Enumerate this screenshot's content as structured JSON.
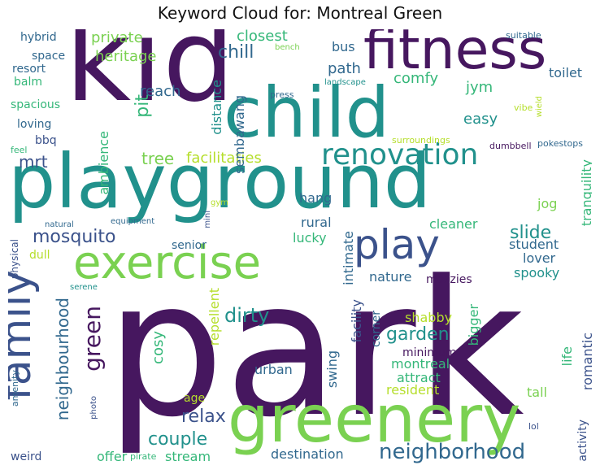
{
  "title": "Keyword Cloud for: Montreal Green",
  "palette": {
    "purple": "#46175f",
    "indigo": "#3b528b",
    "slate": "#31688e",
    "teal": "#21918c",
    "green": "#35b779",
    "lime": "#7ad151",
    "yellow": "#b5de2b"
  },
  "words": [
    {
      "text": "park",
      "color": "#46175f"
    },
    {
      "text": "kid",
      "color": "#46175f"
    },
    {
      "text": "playground",
      "color": "#21918c"
    },
    {
      "text": "child",
      "color": "#21918c"
    },
    {
      "text": "greenery",
      "color": "#7ad151"
    },
    {
      "text": "fitness",
      "color": "#46175f"
    },
    {
      "text": "exercise",
      "color": "#7ad151"
    },
    {
      "text": "family",
      "color": "#3b528b"
    },
    {
      "text": "play",
      "color": "#3b528b"
    },
    {
      "text": "renovation",
      "color": "#21918c"
    },
    {
      "text": "neighborhood",
      "color": "#31688e"
    },
    {
      "text": "green",
      "color": "#46175f"
    },
    {
      "text": "mosquito",
      "color": "#3b528b"
    },
    {
      "text": "neighbourhood",
      "color": "#31688e"
    },
    {
      "text": "dirty",
      "color": "#21918c"
    },
    {
      "text": "garden",
      "color": "#21918c"
    },
    {
      "text": "couple",
      "color": "#21918c"
    },
    {
      "text": "relax",
      "color": "#3b528b"
    },
    {
      "text": "slide",
      "color": "#21918c"
    },
    {
      "text": "chill",
      "color": "#31688e"
    },
    {
      "text": "tree",
      "color": "#7ad151"
    },
    {
      "text": "mrt",
      "color": "#3b528b"
    },
    {
      "text": "pit",
      "color": "#35b779"
    },
    {
      "text": "reach",
      "color": "#31688e"
    },
    {
      "text": "private",
      "color": "#7ad151"
    },
    {
      "text": "heritage",
      "color": "#7ad151"
    },
    {
      "text": "closest",
      "color": "#35b779"
    },
    {
      "text": "path",
      "color": "#31688e"
    },
    {
      "text": "comfy",
      "color": "#35b779"
    },
    {
      "text": "bus",
      "color": "#31688e"
    },
    {
      "text": "easy",
      "color": "#21918c"
    },
    {
      "text": "toilet",
      "color": "#31688e"
    },
    {
      "text": "jym",
      "color": "#35b779"
    },
    {
      "text": "facilitaties",
      "color": "#b5de2b"
    },
    {
      "text": "sembawang",
      "color": "#31688e"
    },
    {
      "text": "distance",
      "color": "#21918c"
    },
    {
      "text": "ambience",
      "color": "#35b779"
    },
    {
      "text": "hang",
      "color": "#31688e"
    },
    {
      "text": "jog",
      "color": "#7ad151"
    },
    {
      "text": "cleaner",
      "color": "#35b779"
    },
    {
      "text": "rural",
      "color": "#31688e"
    },
    {
      "text": "lucky",
      "color": "#35b779"
    },
    {
      "text": "senior",
      "color": "#31688e"
    },
    {
      "text": "student",
      "color": "#31688e"
    },
    {
      "text": "lover",
      "color": "#31688e"
    },
    {
      "text": "tranquility",
      "color": "#35b779"
    },
    {
      "text": "spooky",
      "color": "#21918c"
    },
    {
      "text": "nature",
      "color": "#31688e"
    },
    {
      "text": "mozzies",
      "color": "#46175f"
    },
    {
      "text": "intimate",
      "color": "#31688e"
    },
    {
      "text": "shabby",
      "color": "#b5de2b"
    },
    {
      "text": "facility",
      "color": "#3b528b"
    },
    {
      "text": "corner",
      "color": "#31688e"
    },
    {
      "text": "minimum",
      "color": "#46175f"
    },
    {
      "text": "montreal",
      "color": "#35b779"
    },
    {
      "text": "bigger",
      "color": "#35b779"
    },
    {
      "text": "attract",
      "color": "#35b779"
    },
    {
      "text": "life",
      "color": "#35b779"
    },
    {
      "text": "romantic",
      "color": "#3b528b"
    },
    {
      "text": "resident",
      "color": "#b5de2b"
    },
    {
      "text": "tall",
      "color": "#7ad151"
    },
    {
      "text": "swing",
      "color": "#31688e"
    },
    {
      "text": "urban",
      "color": "#31688e"
    },
    {
      "text": "cosy",
      "color": "#35b779"
    },
    {
      "text": "repellent",
      "color": "#b5de2b"
    },
    {
      "text": "age",
      "color": "#b5de2b"
    },
    {
      "text": "offer",
      "color": "#35b779"
    },
    {
      "text": "stream",
      "color": "#35b779"
    },
    {
      "text": "destination",
      "color": "#31688e"
    },
    {
      "text": "activity",
      "color": "#3b528b"
    },
    {
      "text": "hybrid",
      "color": "#31688e"
    },
    {
      "text": "space",
      "color": "#31688e"
    },
    {
      "text": "resort",
      "color": "#31688e"
    },
    {
      "text": "balm",
      "color": "#35b779"
    },
    {
      "text": "spacious",
      "color": "#35b779"
    },
    {
      "text": "loving",
      "color": "#31688e"
    },
    {
      "text": "bbq",
      "color": "#3b528b"
    },
    {
      "text": "feel",
      "color": "#35b779"
    },
    {
      "text": "dull",
      "color": "#b5de2b"
    },
    {
      "text": "physical",
      "color": "#3b528b"
    },
    {
      "text": "amenity",
      "color": "#31688e"
    },
    {
      "text": "photo",
      "color": "#3b528b"
    },
    {
      "text": "weird",
      "color": "#3b528b"
    },
    {
      "text": "serene",
      "color": "#21918c"
    },
    {
      "text": "natural",
      "color": "#31688e"
    },
    {
      "text": "equipment",
      "color": "#31688e"
    },
    {
      "text": "gym",
      "color": "#b5de2b"
    },
    {
      "text": "mini",
      "color": "#3b528b"
    },
    {
      "text": "suitable",
      "color": "#31688e"
    },
    {
      "text": "bench",
      "color": "#7ad151"
    },
    {
      "text": "landscape",
      "color": "#21918c"
    },
    {
      "text": "press",
      "color": "#31688e"
    },
    {
      "text": "vibe",
      "color": "#b5de2b"
    },
    {
      "text": "wield",
      "color": "#b5de2b"
    },
    {
      "text": "surroundings",
      "color": "#b5de2b"
    },
    {
      "text": "dumbbell",
      "color": "#46175f"
    },
    {
      "text": "pokestops",
      "color": "#31688e"
    },
    {
      "text": "pirate",
      "color": "#35b779"
    },
    {
      "text": "lol",
      "color": "#3b528b"
    }
  ]
}
